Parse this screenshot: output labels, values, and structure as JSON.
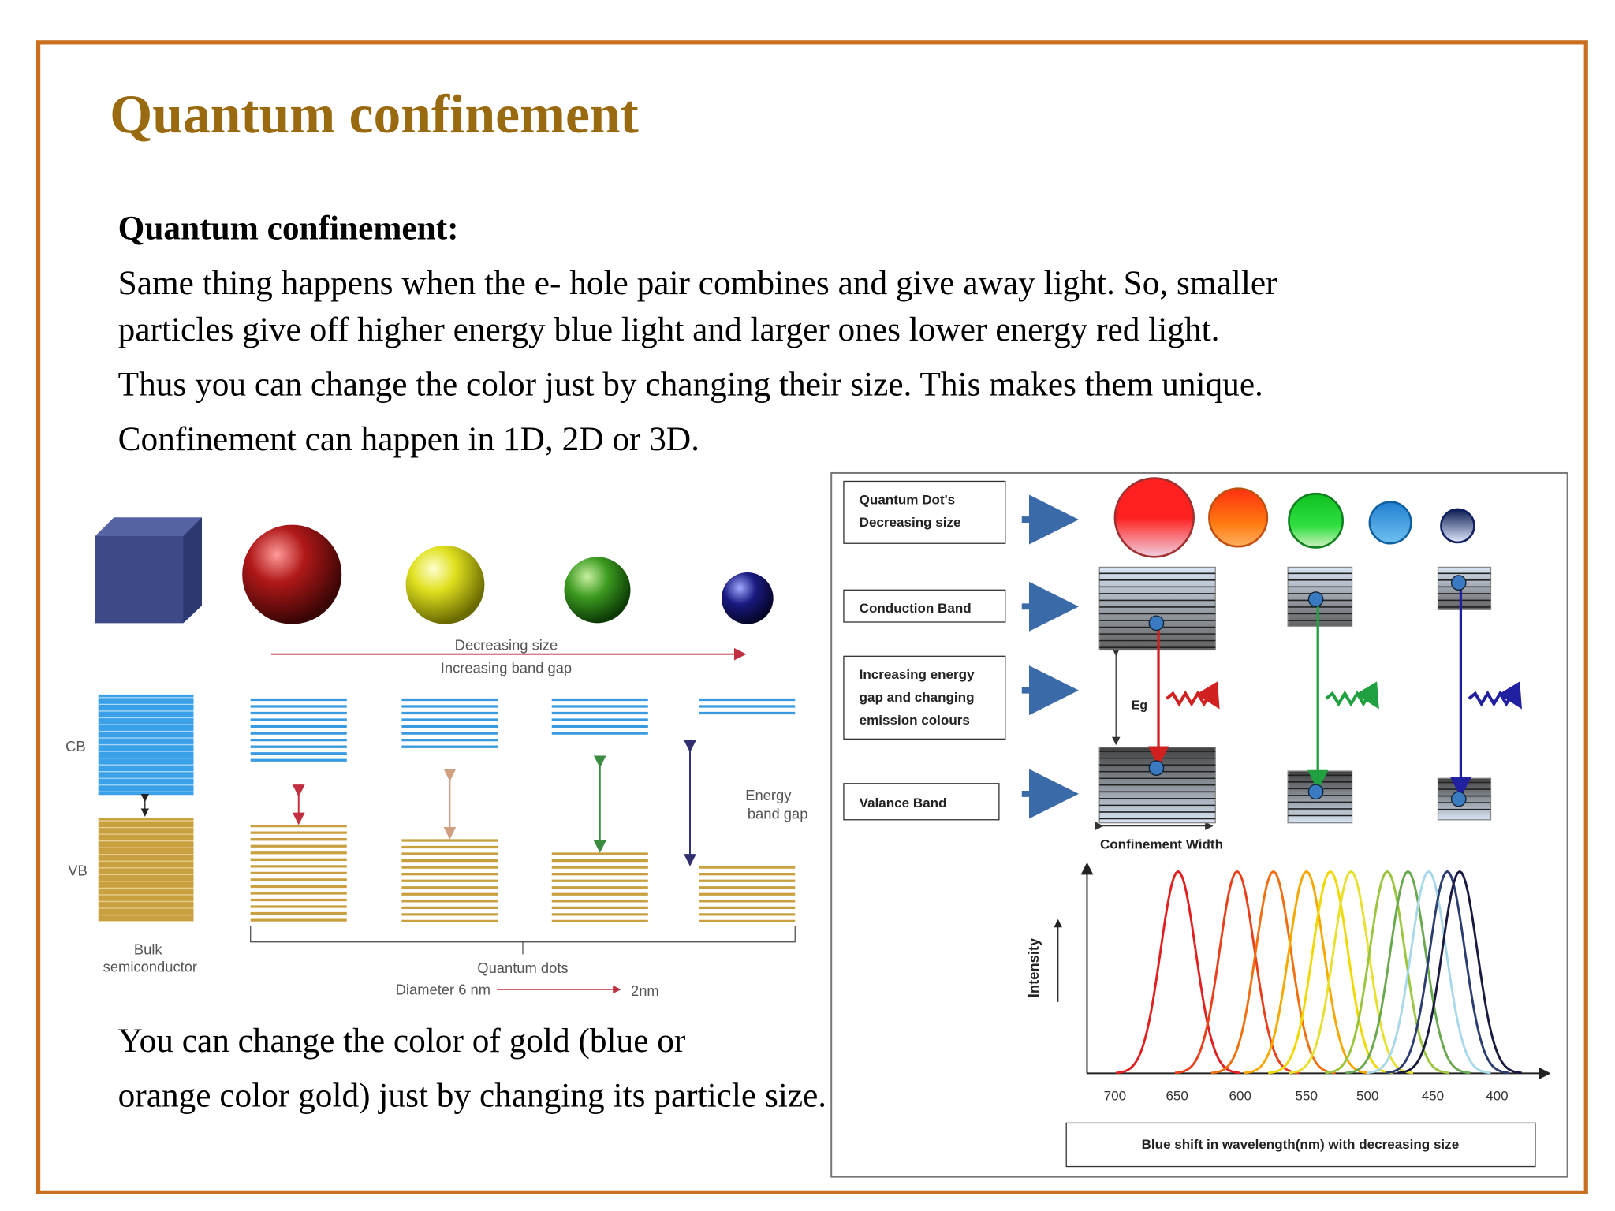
{
  "header": {
    "title": "Quantum confinement"
  },
  "body": {
    "heading": "Quantum confinement:",
    "lines": [
      "Same thing happens when the e- hole pair combines and give away light. So, smaller",
      "particles give off higher energy blue light and larger ones lower energy red light.",
      "Thus you can change the color just by changing their size. This makes them unique.",
      "Confinement can happen in 1D, 2D or 3D."
    ],
    "closing": [
      "You can change the color of gold (blue or",
      "orange color gold) just by changing its particle size."
    ]
  },
  "figure_left": {
    "arrow_top": "Decreasing size",
    "arrow_bottom": "Increasing band gap",
    "cb": "CB",
    "vb": "VB",
    "gap": [
      "Energy",
      "band gap"
    ],
    "bulk": [
      "Bulk",
      "semiconductor"
    ],
    "dots": "Quantum dots",
    "diameter_from": "Diameter 6 nm",
    "diameter_to": "2nm"
  },
  "figure_right": {
    "boxes": [
      [
        "Quantum Dot's",
        "Decreasing size"
      ],
      [
        "Conduction Band"
      ],
      [
        "Increasing energy",
        "gap and changing",
        "emission colours"
      ],
      [
        "Valance  Band"
      ]
    ],
    "eg": "Eg",
    "width": "Confinement Width",
    "intensity": "Intensity",
    "ticks": [
      700,
      650,
      600,
      550,
      500,
      450,
      400
    ],
    "caption": "Blue shift in wavelength(nm) with decreasing size"
  }
}
